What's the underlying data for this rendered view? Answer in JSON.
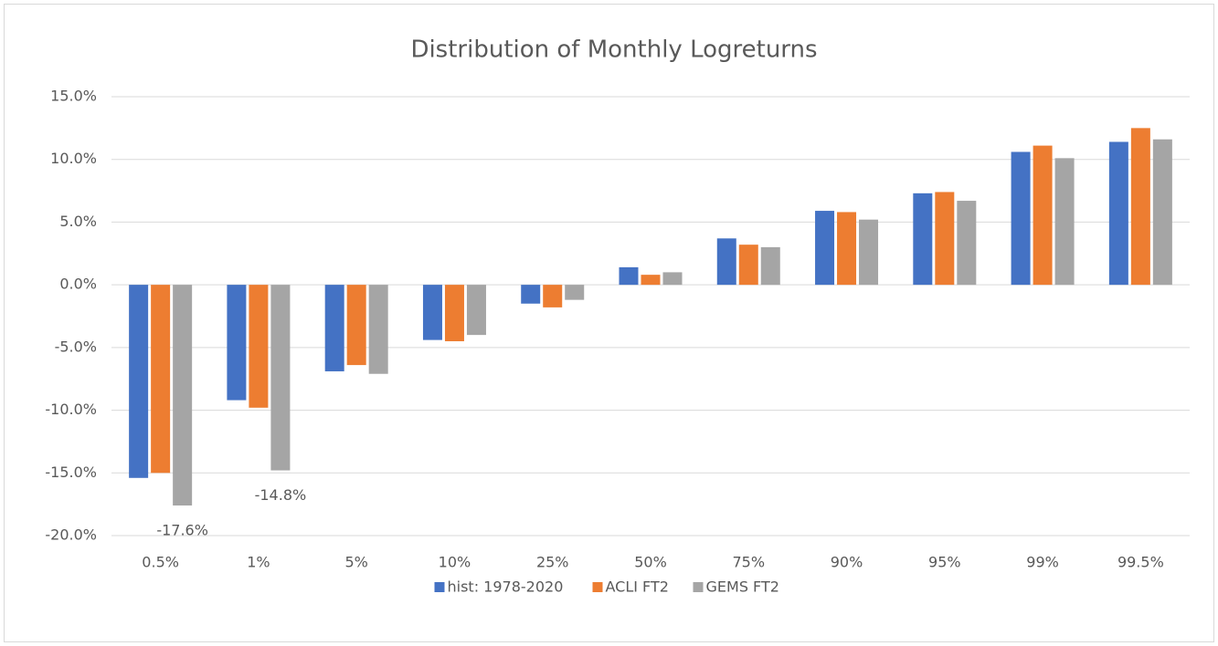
{
  "chart_data": {
    "type": "bar",
    "title": "Distribution of Monthly Logreturns",
    "categories": [
      "0.5%",
      "1%",
      "5%",
      "10%",
      "25%",
      "50%",
      "75%",
      "90%",
      "95%",
      "99%",
      "99.5%"
    ],
    "series": [
      {
        "name": "hist: 1978-2020",
        "color": "#4472c4",
        "values": [
          -15.4,
          -9.2,
          -6.9,
          -4.4,
          -1.5,
          1.4,
          3.7,
          5.9,
          7.3,
          10.6,
          11.4
        ]
      },
      {
        "name": "ACLI FT2",
        "color": "#ed7d31",
        "values": [
          -15.0,
          -9.8,
          -6.4,
          -4.5,
          -1.8,
          0.8,
          3.2,
          5.8,
          7.4,
          11.1,
          12.5
        ]
      },
      {
        "name": "GEMS FT2",
        "color": "#a5a5a5",
        "values": [
          -17.6,
          -14.8,
          -7.1,
          -4.0,
          -1.2,
          1.0,
          3.0,
          5.2,
          6.7,
          10.1,
          11.6
        ],
        "value_labels": [
          "-17.6%",
          "-14.8%",
          null,
          null,
          null,
          null,
          null,
          null,
          null,
          null,
          null
        ]
      }
    ],
    "ylim": [
      -20,
      15
    ],
    "yticks": [
      {
        "value": -20,
        "label": "-20.0%"
      },
      {
        "value": -15,
        "label": "-15.0%"
      },
      {
        "value": -10,
        "label": "-10.0%"
      },
      {
        "value": -5,
        "label": "-5.0%"
      },
      {
        "value": 0,
        "label": "0.0%"
      },
      {
        "value": 5,
        "label": "5.0%"
      },
      {
        "value": 10,
        "label": "10.0%"
      },
      {
        "value": 15,
        "label": "15.0%"
      }
    ],
    "grid": true,
    "legend": "bottom"
  }
}
